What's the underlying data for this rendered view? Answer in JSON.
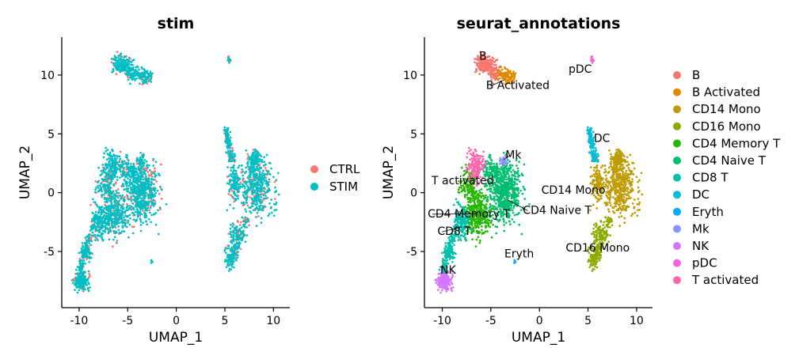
{
  "chart_data": [
    {
      "type": "scatter",
      "title": "stim",
      "xlabel": "UMAP_1",
      "ylabel": "UMAP_2",
      "xlim": [
        -11.5,
        11.5
      ],
      "ylim": [
        -9.5,
        12.8
      ],
      "xticks": [
        -10,
        -5,
        0,
        5,
        10
      ],
      "yticks": [
        -5,
        0,
        5,
        10
      ],
      "xtick_labels": [
        "-10",
        "-5",
        "0",
        "5",
        "10"
      ],
      "ytick_labels": [
        "-5",
        "0",
        "5",
        "10"
      ],
      "legend": {
        "position": "right",
        "entries": [
          "CTRL",
          "STIM"
        ]
      },
      "series": [
        {
          "name": "CTRL",
          "color": "#F8766D"
        },
        {
          "name": "STIM",
          "color": "#00BFC4"
        }
      ]
    },
    {
      "type": "scatter",
      "title": "seurat_annotations",
      "xlabel": "UMAP_1",
      "ylabel": "UMAP_2",
      "xlim": [
        -11.5,
        11.5
      ],
      "ylim": [
        -9.5,
        12.8
      ],
      "xticks": [
        -10,
        -5,
        0,
        5,
        10
      ],
      "yticks": [
        -5,
        0,
        5,
        10
      ],
      "xtick_labels": [
        "-10",
        "-5",
        "0",
        "5",
        "10"
      ],
      "ytick_labels": [
        "-5",
        "0",
        "5",
        "10"
      ],
      "legend": {
        "position": "right",
        "entries": [
          "B",
          "B Activated",
          "CD14 Mono",
          "CD16 Mono",
          "CD4 Memory T",
          "CD4 Naive T",
          "CD8 T",
          "DC",
          "Eryth",
          "Mk",
          "NK",
          "pDC",
          "T activated"
        ]
      },
      "series": [
        {
          "name": "B",
          "color": "#F8766D"
        },
        {
          "name": "B Activated",
          "color": "#E18A00"
        },
        {
          "name": "CD14 Mono",
          "color": "#BE9C00"
        },
        {
          "name": "CD16 Mono",
          "color": "#8CAB00"
        },
        {
          "name": "CD4 Memory T",
          "color": "#24B700"
        },
        {
          "name": "CD4 Naive T",
          "color": "#00BE70"
        },
        {
          "name": "CD8 T",
          "color": "#00C1AB"
        },
        {
          "name": "DC",
          "color": "#00BBDA"
        },
        {
          "name": "Eryth",
          "color": "#00ACFC"
        },
        {
          "name": "Mk",
          "color": "#8B93FF"
        },
        {
          "name": "NK",
          "color": "#D575FE"
        },
        {
          "name": "pDC",
          "color": "#F962DD"
        },
        {
          "name": "T activated",
          "color": "#FF65AC"
        }
      ],
      "annotations": [
        "B",
        "B Activated",
        "pDC",
        "DC",
        "Mk",
        "T activated",
        "CD14 Mono",
        "CD4 Memory T",
        "CD4 Naive T",
        "CD8 T",
        "Eryth",
        "CD16 Mono",
        "NK"
      ]
    }
  ]
}
